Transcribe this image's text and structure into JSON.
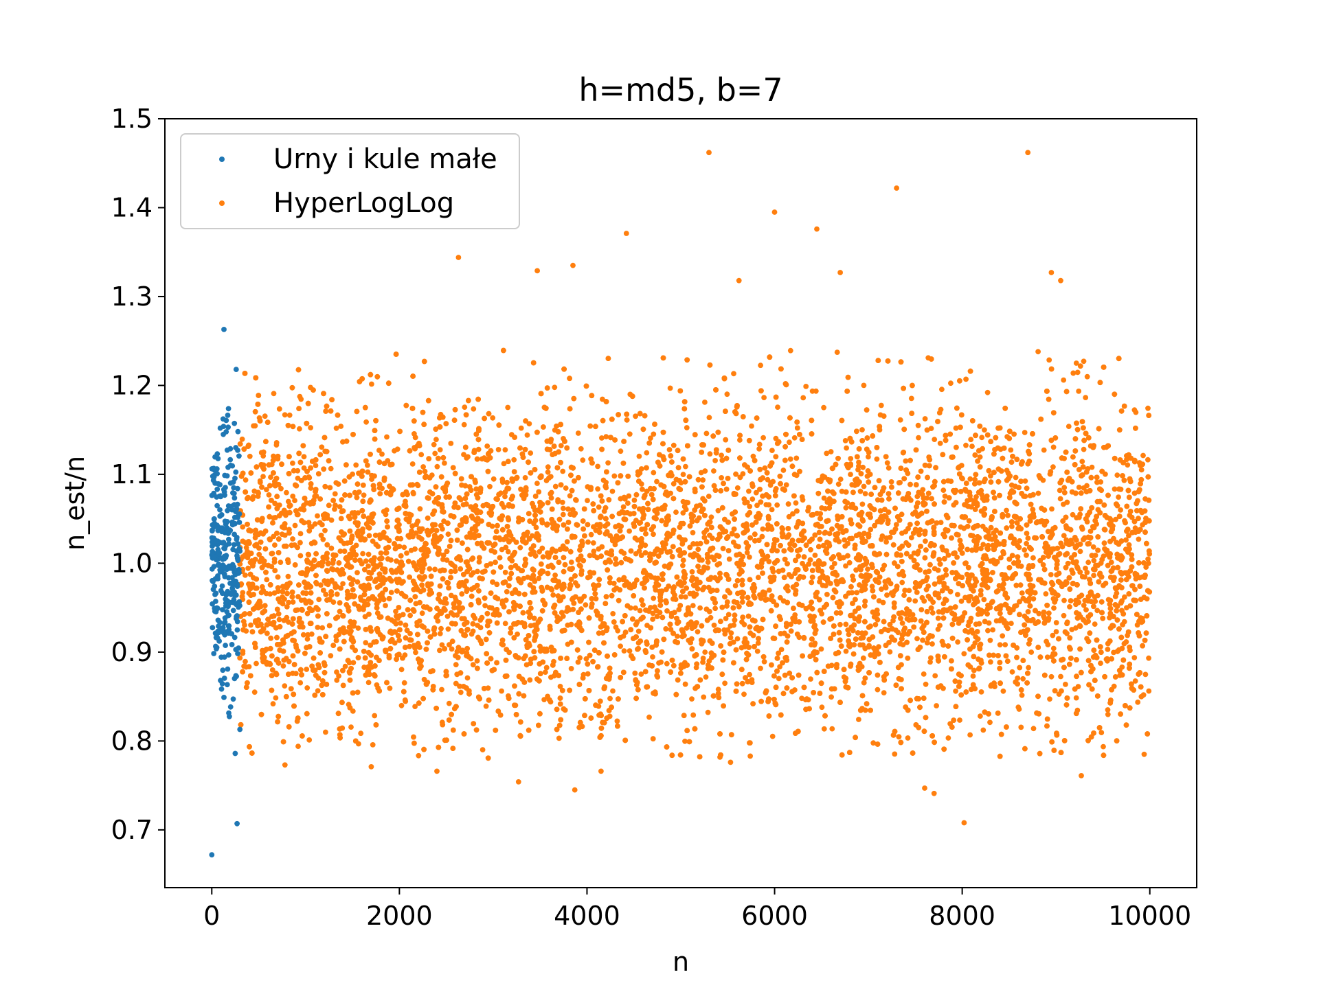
{
  "chart_data": {
    "type": "scatter",
    "title": "h=md5, b=7",
    "xlabel": "n",
    "ylabel": "n_est/n",
    "xlim": [
      -500,
      10500
    ],
    "ylim": [
      0.635,
      1.5
    ],
    "xticks": [
      0,
      2000,
      4000,
      6000,
      8000,
      10000
    ],
    "xtick_labels": [
      "0",
      "2000",
      "4000",
      "6000",
      "8000",
      "10000"
    ],
    "yticks": [
      0.7,
      0.8,
      0.9,
      1.0,
      1.1,
      1.2,
      1.3,
      1.4,
      1.5
    ],
    "ytick_labels": [
      "0.7",
      "0.8",
      "0.9",
      "1.0",
      "1.1",
      "1.2",
      "1.3",
      "1.4",
      "1.5"
    ],
    "grid": false,
    "legend_position": "upper-left",
    "series": [
      {
        "name": "Urny i kule małe",
        "color": "#1f77b4",
        "x_range": [
          0,
          300
        ],
        "y_center": 1.0,
        "y_spread": 0.07,
        "approx_point_count": 300,
        "notable_points": [
          {
            "x": 0,
            "y": 0.672
          },
          {
            "x": 130,
            "y": 1.263
          },
          {
            "x": 260,
            "y": 1.218
          },
          {
            "x": 270,
            "y": 0.707
          },
          {
            "x": 250,
            "y": 0.786
          },
          {
            "x": 300,
            "y": 0.813
          },
          {
            "x": 130,
            "y": 0.849
          },
          {
            "x": 90,
            "y": 1.152
          }
        ]
      },
      {
        "name": "HyperLogLog",
        "color": "#ff7f0e",
        "x_range": [
          300,
          10000
        ],
        "y_center": 0.995,
        "y_spread": 0.09,
        "approx_point_count": 9700,
        "notable_points": [
          {
            "x": 5300,
            "y": 1.462
          },
          {
            "x": 8700,
            "y": 1.462
          },
          {
            "x": 7300,
            "y": 1.422
          },
          {
            "x": 6000,
            "y": 1.395
          },
          {
            "x": 6450,
            "y": 1.376
          },
          {
            "x": 4420,
            "y": 1.371
          },
          {
            "x": 2630,
            "y": 1.344
          },
          {
            "x": 3850,
            "y": 1.335
          },
          {
            "x": 3470,
            "y": 1.329
          },
          {
            "x": 8950,
            "y": 1.327
          },
          {
            "x": 9050,
            "y": 1.318
          },
          {
            "x": 5620,
            "y": 1.318
          },
          {
            "x": 6700,
            "y": 1.327
          },
          {
            "x": 8040,
            "y": 1.207
          },
          {
            "x": 8020,
            "y": 0.708
          },
          {
            "x": 3870,
            "y": 0.745
          },
          {
            "x": 7700,
            "y": 0.741
          },
          {
            "x": 7600,
            "y": 0.747
          },
          {
            "x": 3270,
            "y": 0.754
          },
          {
            "x": 9270,
            "y": 0.761
          },
          {
            "x": 2400,
            "y": 0.766
          },
          {
            "x": 4150,
            "y": 0.766
          },
          {
            "x": 780,
            "y": 0.773
          },
          {
            "x": 1700,
            "y": 0.771
          },
          {
            "x": 5530,
            "y": 0.776
          },
          {
            "x": 9940,
            "y": 0.785
          }
        ]
      }
    ]
  }
}
